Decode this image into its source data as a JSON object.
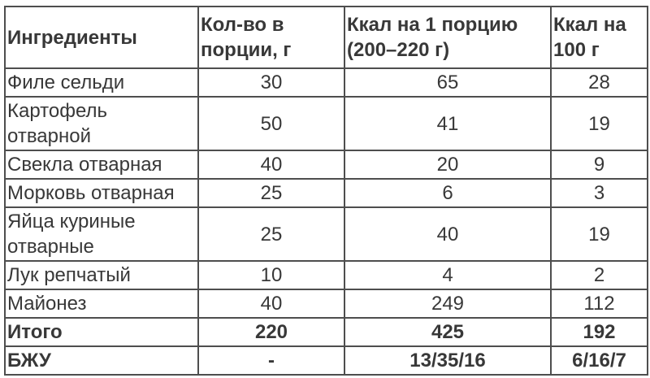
{
  "table": {
    "title_hint": "nutrition-facts-table",
    "columns": [
      {
        "label": "Ингредиенты"
      },
      {
        "label": "Кол-во в порции, г"
      },
      {
        "label": "Ккал на 1 порцию (200–220 г)"
      },
      {
        "label": "Ккал на 100 г"
      }
    ],
    "rows": [
      {
        "cells": [
          "Филе сельди",
          "30",
          "65",
          "28"
        ]
      },
      {
        "cells": [
          "Картофель отварной",
          "50",
          "41",
          "19"
        ]
      },
      {
        "cells": [
          "Свекла отварная",
          "40",
          "20",
          "9"
        ]
      },
      {
        "cells": [
          "Морковь отварная",
          "25",
          "6",
          "3"
        ]
      },
      {
        "cells": [
          "Яйца куриные отварные",
          "25",
          "40",
          "19"
        ]
      },
      {
        "cells": [
          "Лук репчатый",
          "10",
          "4",
          "2"
        ]
      },
      {
        "cells": [
          "Майонез",
          "40",
          "249",
          "112"
        ]
      },
      {
        "cells": [
          "Итого",
          "220",
          "425",
          "192"
        ]
      },
      {
        "cells": [
          "БЖУ",
          "-",
          "13/35/16",
          "6/16/7"
        ]
      }
    ],
    "colors": {
      "border": "#4e4e4e",
      "text": "#383838",
      "background": "#ffffff"
    }
  }
}
